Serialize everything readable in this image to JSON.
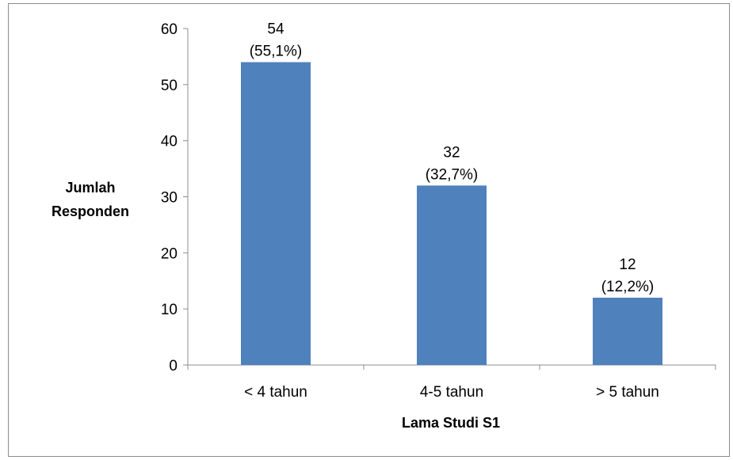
{
  "chart_data": {
    "type": "bar",
    "categories": [
      "< 4 tahun",
      "4-5 tahun",
      "> 5 tahun"
    ],
    "values": [
      54,
      32,
      12
    ],
    "data_labels": [
      [
        "54",
        "(55,1%)"
      ],
      [
        "32",
        "(32,7%)"
      ],
      [
        "12",
        "(12,2%)"
      ]
    ],
    "xlabel": "Lama Studi S1",
    "ylabel": [
      "Jumlah",
      "Responden"
    ],
    "ylim": [
      0,
      60
    ],
    "yticks": [
      0,
      10,
      20,
      30,
      40,
      50,
      60
    ],
    "grid": false,
    "legend": "none",
    "bar_color": "#4f81bd"
  }
}
